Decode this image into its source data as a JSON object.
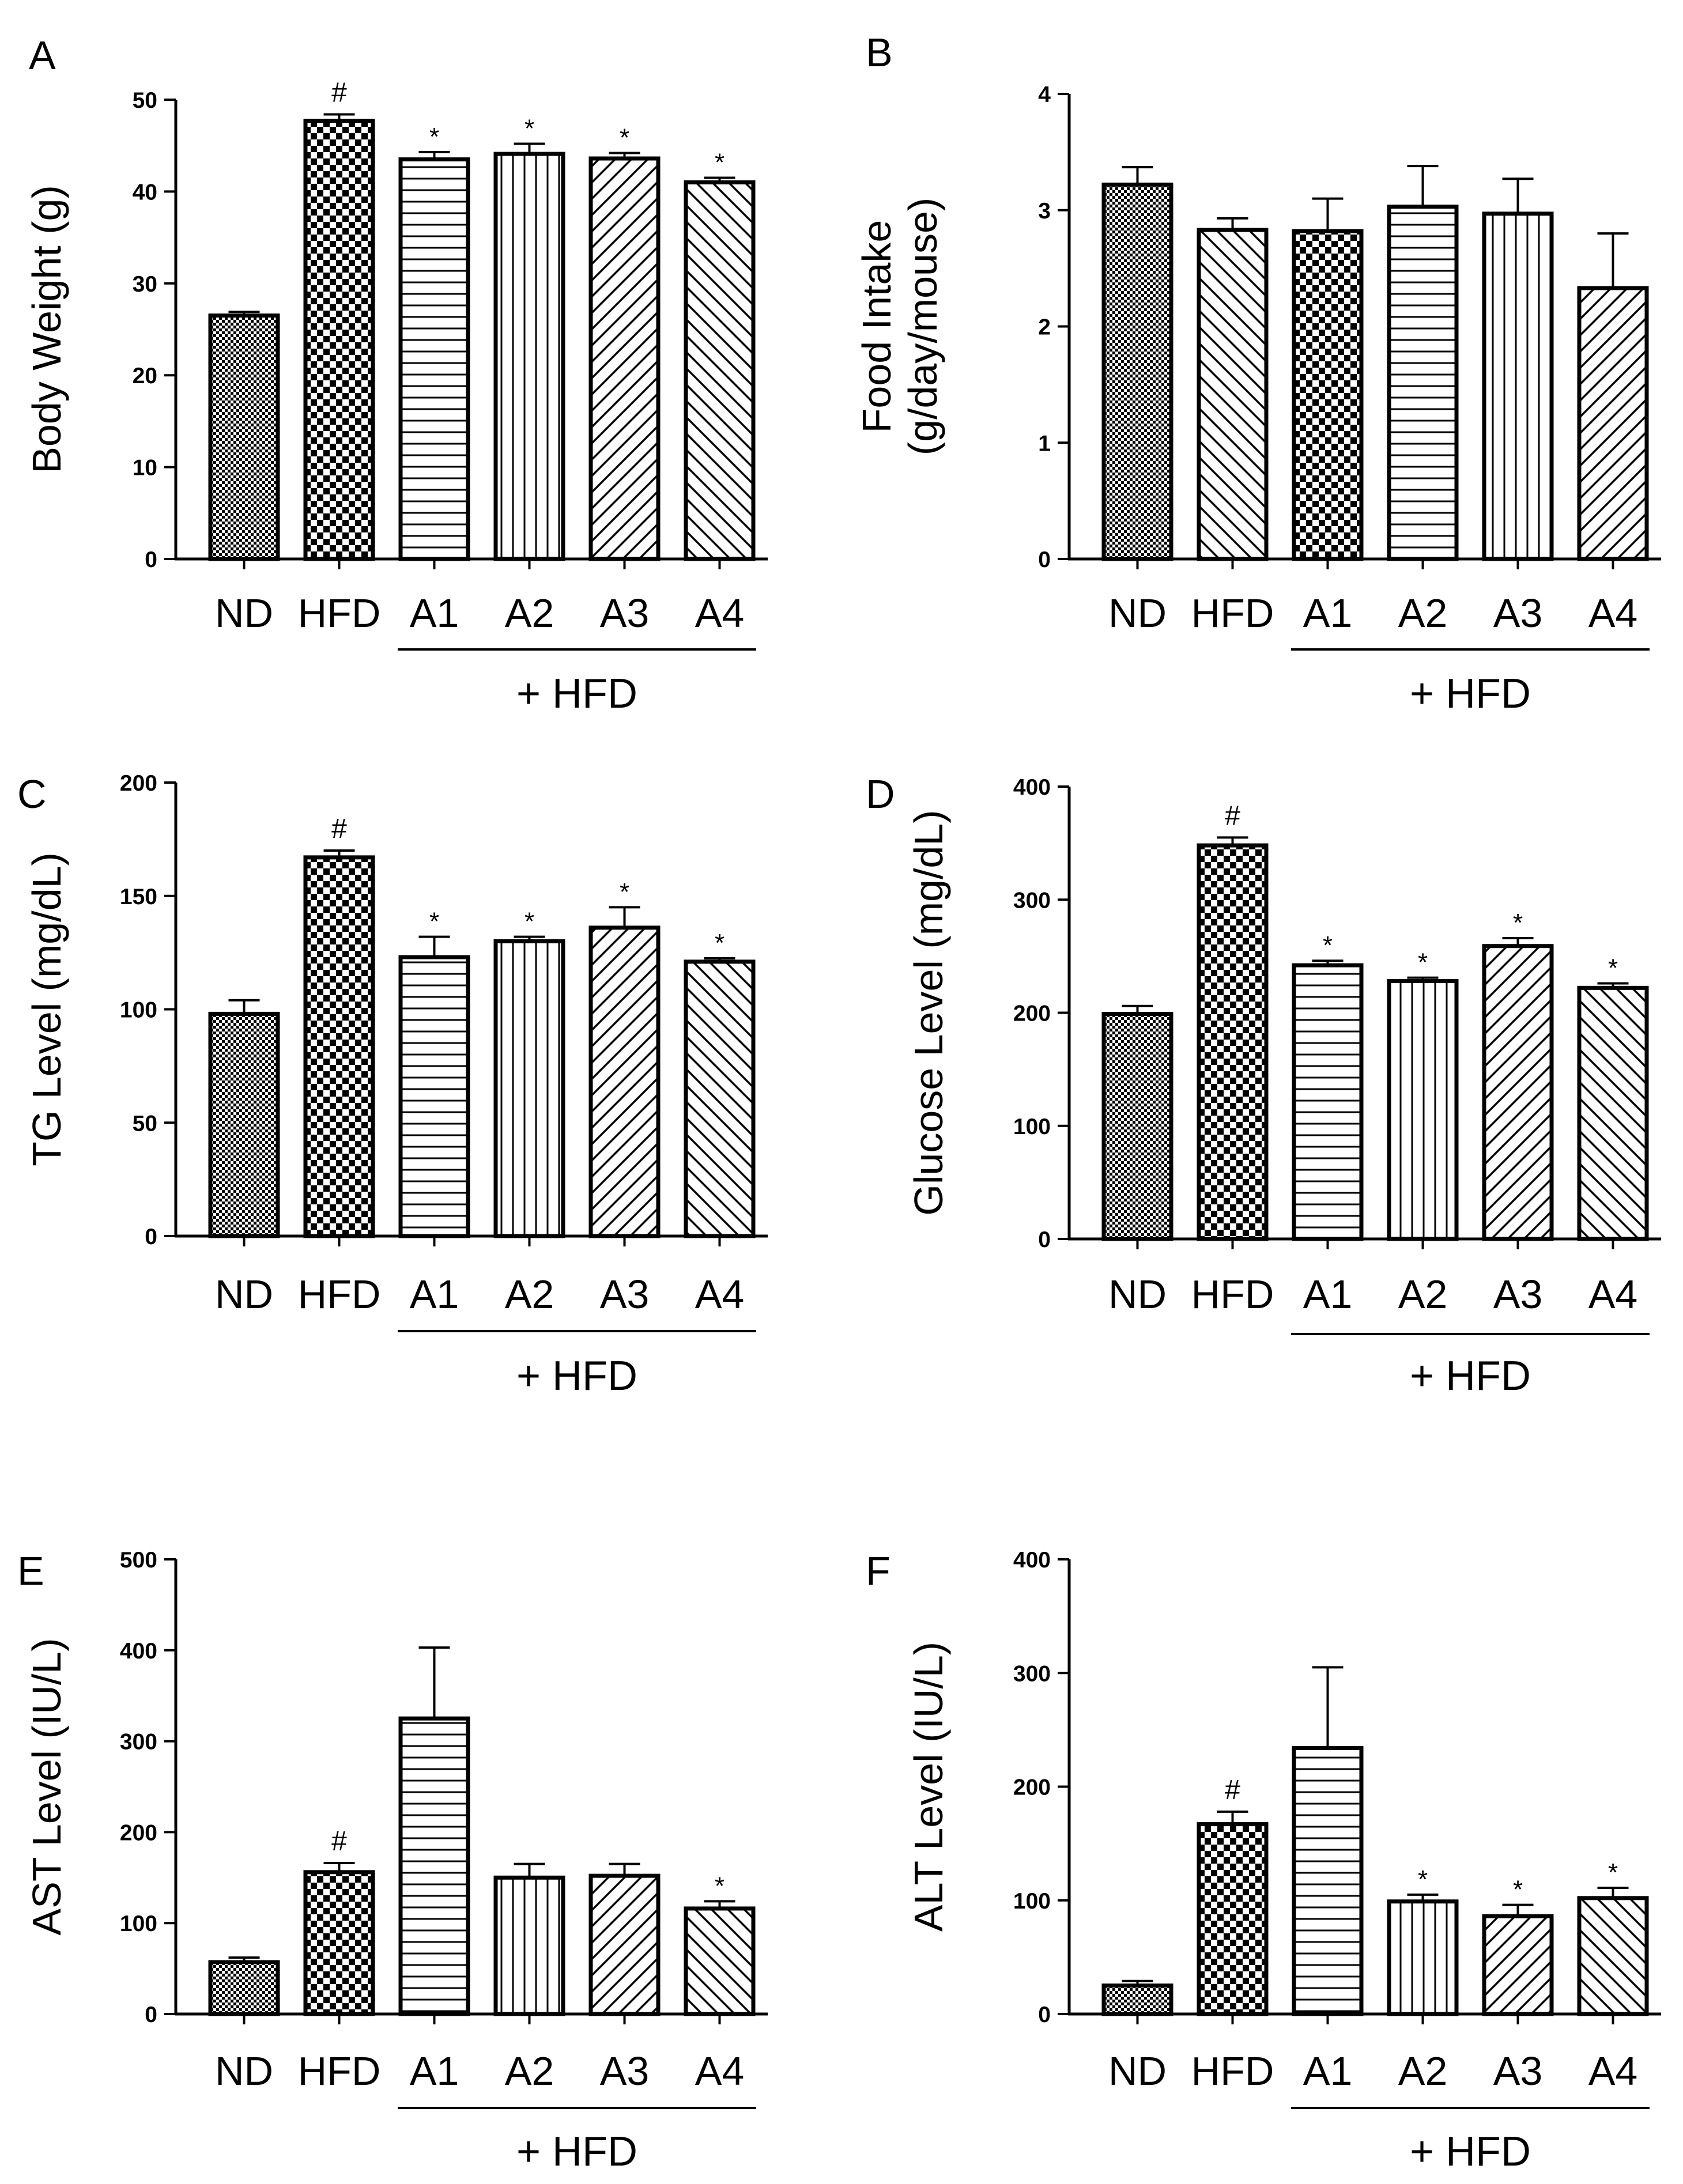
{
  "group_label": "+ HFD",
  "patterns": [
    "fine-check",
    "coarse-check",
    "hstripe",
    "vstripe",
    "diag-right",
    "diag-left"
  ],
  "chart_data": [
    {
      "panel": "A",
      "type": "bar",
      "title": "",
      "ylabel": "Body Weight (g)",
      "categories": [
        "ND",
        "HFD",
        "A1",
        "A2",
        "A3",
        "A4"
      ],
      "values": [
        26.5,
        47.7,
        43.5,
        44.1,
        43.6,
        41.0
      ],
      "errors": [
        0.4,
        0.7,
        0.8,
        1.1,
        0.6,
        0.5
      ],
      "annotations": [
        "",
        "#",
        "*",
        "*",
        "*",
        "*"
      ],
      "fills": [
        "fine-check",
        "coarse-check",
        "hstripe",
        "vstripe",
        "diag-right",
        "diag-left"
      ],
      "ylim": [
        0,
        50
      ],
      "yticks": [
        "0",
        "10",
        "20",
        "30",
        "40",
        "50"
      ],
      "group_span": [
        "A1",
        "A4"
      ]
    },
    {
      "panel": "B",
      "type": "bar",
      "title": "",
      "ylabel": [
        "Food Intake",
        "(g/day/mouse)"
      ],
      "categories": [
        "ND",
        "HFD",
        "A1",
        "A2",
        "A3",
        "A4"
      ],
      "values": [
        3.22,
        2.83,
        2.82,
        3.03,
        2.97,
        2.33
      ],
      "errors": [
        0.15,
        0.1,
        0.28,
        0.35,
        0.3,
        0.47
      ],
      "annotations": [
        "",
        "",
        "",
        "",
        "",
        ""
      ],
      "fills": [
        "fine-check",
        "diag-left",
        "coarse-check",
        "hstripe",
        "vstripe",
        "diag-right"
      ],
      "ylim": [
        0,
        4
      ],
      "yticks": [
        "0",
        "1",
        "2",
        "3",
        "4"
      ],
      "group_span": [
        "A1",
        "A4"
      ]
    },
    {
      "panel": "C",
      "type": "bar",
      "title": "",
      "ylabel": "TG Level (mg/dL)",
      "categories": [
        "ND",
        "HFD",
        "A1",
        "A2",
        "A3",
        "A4"
      ],
      "values": [
        98,
        167,
        123,
        130,
        136,
        121
      ],
      "errors": [
        6,
        3,
        9,
        2,
        9,
        1.5
      ],
      "annotations": [
        "",
        "#",
        "*",
        "*",
        "*",
        "*"
      ],
      "fills": [
        "fine-check",
        "coarse-check",
        "hstripe",
        "vstripe",
        "diag-right",
        "diag-left"
      ],
      "ylim": [
        0,
        200
      ],
      "yticks": [
        "0",
        "50",
        "100",
        "150",
        "200"
      ],
      "group_span": [
        "A1",
        "A4"
      ]
    },
    {
      "panel": "D",
      "type": "bar",
      "title": "",
      "ylabel": "Glucose Level (mg/dL)",
      "categories": [
        "ND",
        "HFD",
        "A1",
        "A2",
        "A3",
        "A4"
      ],
      "values": [
        199,
        348,
        242,
        228,
        259,
        222
      ],
      "errors": [
        7,
        7,
        4,
        3,
        7,
        4
      ],
      "annotations": [
        "",
        "#",
        "*",
        "*",
        "*",
        "*"
      ],
      "fills": [
        "fine-check",
        "coarse-check",
        "hstripe",
        "vstripe",
        "diag-right",
        "diag-left"
      ],
      "ylim": [
        0,
        400
      ],
      "yticks": [
        "0",
        "100",
        "200",
        "300",
        "400"
      ],
      "group_span": [
        "A1",
        "A4"
      ]
    },
    {
      "panel": "E",
      "type": "bar",
      "title": "",
      "ylabel": "AST Level (IU/L)",
      "categories": [
        "ND",
        "HFD",
        "A1",
        "A2",
        "A3",
        "A4"
      ],
      "values": [
        57,
        156,
        325,
        150,
        152,
        116
      ],
      "errors": [
        5,
        10,
        78,
        15,
        13,
        8
      ],
      "annotations": [
        "",
        "#",
        "",
        "",
        "",
        "*"
      ],
      "fills": [
        "fine-check",
        "coarse-check",
        "hstripe",
        "vstripe",
        "diag-right",
        "diag-left"
      ],
      "ylim": [
        0,
        500
      ],
      "yticks": [
        "0",
        "100",
        "200",
        "300",
        "400",
        "500"
      ],
      "group_span": [
        "A1",
        "A4"
      ]
    },
    {
      "panel": "F",
      "type": "bar",
      "title": "",
      "ylabel": "ALT Level (IU/L)",
      "categories": [
        "ND",
        "HFD",
        "A1",
        "A2",
        "A3",
        "A4"
      ],
      "values": [
        25,
        167,
        234,
        99,
        86,
        102
      ],
      "errors": [
        4,
        11,
        71,
        6,
        10,
        9
      ],
      "annotations": [
        "",
        "#",
        "",
        "*",
        "*",
        "*"
      ],
      "fills": [
        "fine-check",
        "coarse-check",
        "hstripe",
        "vstripe",
        "diag-right",
        "diag-left"
      ],
      "ylim": [
        0,
        400
      ],
      "yticks": [
        "0",
        "100",
        "200",
        "300",
        "400"
      ],
      "group_span": [
        "A1",
        "A4"
      ]
    }
  ]
}
